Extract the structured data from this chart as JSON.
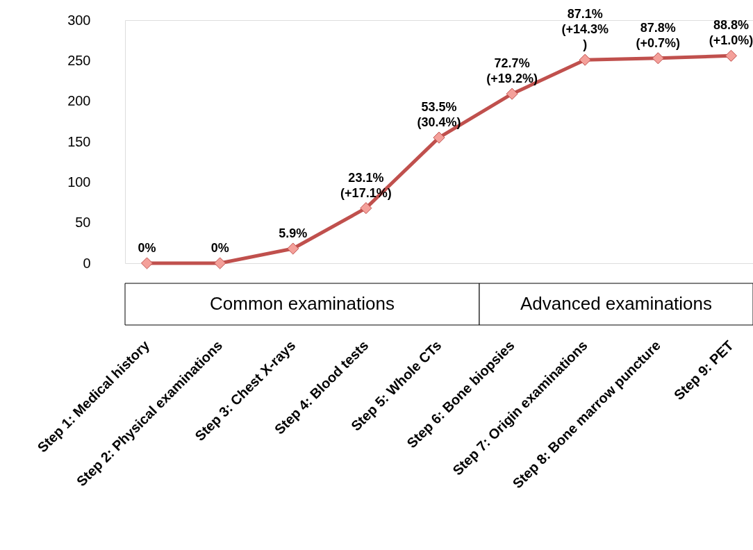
{
  "chart_data": {
    "type": "line",
    "categories": [
      "Step 1: Medical history",
      "Step 2: Physical examinations",
      "Step 3: Chest X-rays",
      "Step 4: Blood tests",
      "Step 5:  Whole CTs",
      "Step 6: Bone biopsies",
      "Step 7: Origin examinations",
      "Step 8: Bone marrow puncture",
      "Step 9: PET"
    ],
    "series": [
      {
        "color": "#c0504d",
        "values": [
          0,
          0,
          18,
          68,
          155,
          209,
          251,
          253,
          256
        ]
      }
    ],
    "marker": "diamond",
    "line_style": "solid",
    "grid": false,
    "ylim": [
      0,
      300
    ],
    "yticks": [
      0,
      50,
      100,
      150,
      200,
      250,
      300
    ],
    "annotations": [
      "Common examinations",
      "Advanced examinations",
      {
        "text": "0%",
        "x": "Step 1: Medical history",
        "y": 0
      },
      {
        "text": "0%",
        "x": "Step 2: Physical examinations",
        "y": 0
      },
      {
        "text": "5.9%",
        "x": "Step 3: Chest X-rays",
        "y": 18
      },
      {
        "text": "23.1%\n(+17.1%)",
        "x": "Step 4: Blood tests",
        "y": 68
      },
      {
        "text": "53.5%\n(30.4%)",
        "x": "Step 5:  Whole CTs",
        "y": 155
      },
      {
        "text": "72.7%\n(+19.2%)",
        "x": "Step 6: Bone biopsies",
        "y": 209
      },
      {
        "text": "87.1%\n(+14.3%\n)",
        "x": "Step 7: Origin examinations",
        "y": 251
      },
      {
        "text": "87.8%\n(+0.7%)",
        "x": "Step 8: Bone marrow puncture",
        "y": 253
      },
      {
        "text": "88.8%\n(+1.0%)",
        "x": "Step 9: PET",
        "y": 256
      }
    ]
  }
}
